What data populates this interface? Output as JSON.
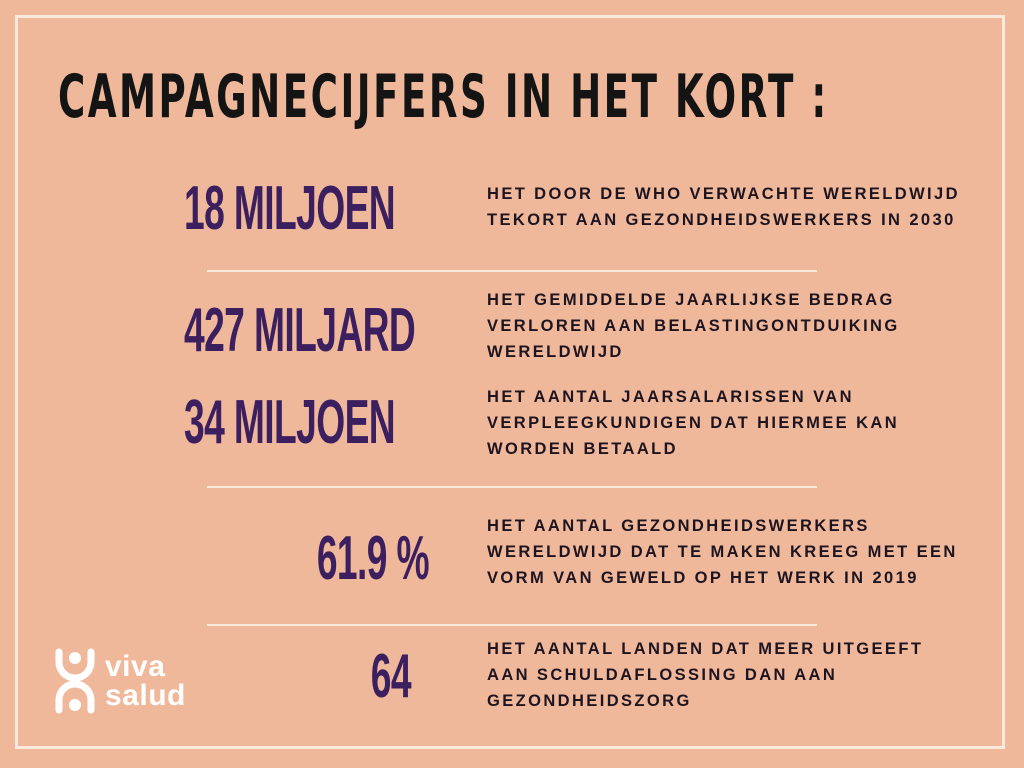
{
  "title": "CAMPAGNECIJFERS IN HET KORT :",
  "stats": [
    {
      "value": "18 MILJOEN",
      "description": "HET DOOR DE WHO VERWACHTE WERELDWIJD TEKORT AAN GEZONDHEIDSWERKERS IN 2030"
    },
    {
      "value": "427 MILJARD",
      "description": "HET GEMIDDELDE JAARLIJKSE BEDRAG VERLOREN AAN BELASTINGONTDUIKING WERELDWIJD"
    },
    {
      "value": "34 MILJOEN",
      "description": "HET AANTAL JAARSALARISSEN VAN VERPLEEGKUNDIGEN DAT HIERMEE KAN WORDEN BETAALD"
    },
    {
      "value": "61.9 %",
      "description": "HET AANTAL GEZONDHEIDSWERKERS WERELDWIJD DAT TE MAKEN KREEG MET EEN VORM VAN GEWELD OP HET WERK IN 2019"
    },
    {
      "value": "64",
      "description": "HET AANTAL LANDEN DAT MEER UITGEEFT AAN SCHULDAFLOSSING DAN AAN GEZONDHEIDSZORG"
    }
  ],
  "logo": {
    "line1": "viva",
    "line2": "salud"
  },
  "colors": {
    "background": "#f0b89a",
    "accent": "#3b1f5e",
    "frame": "#fbe9dd"
  }
}
